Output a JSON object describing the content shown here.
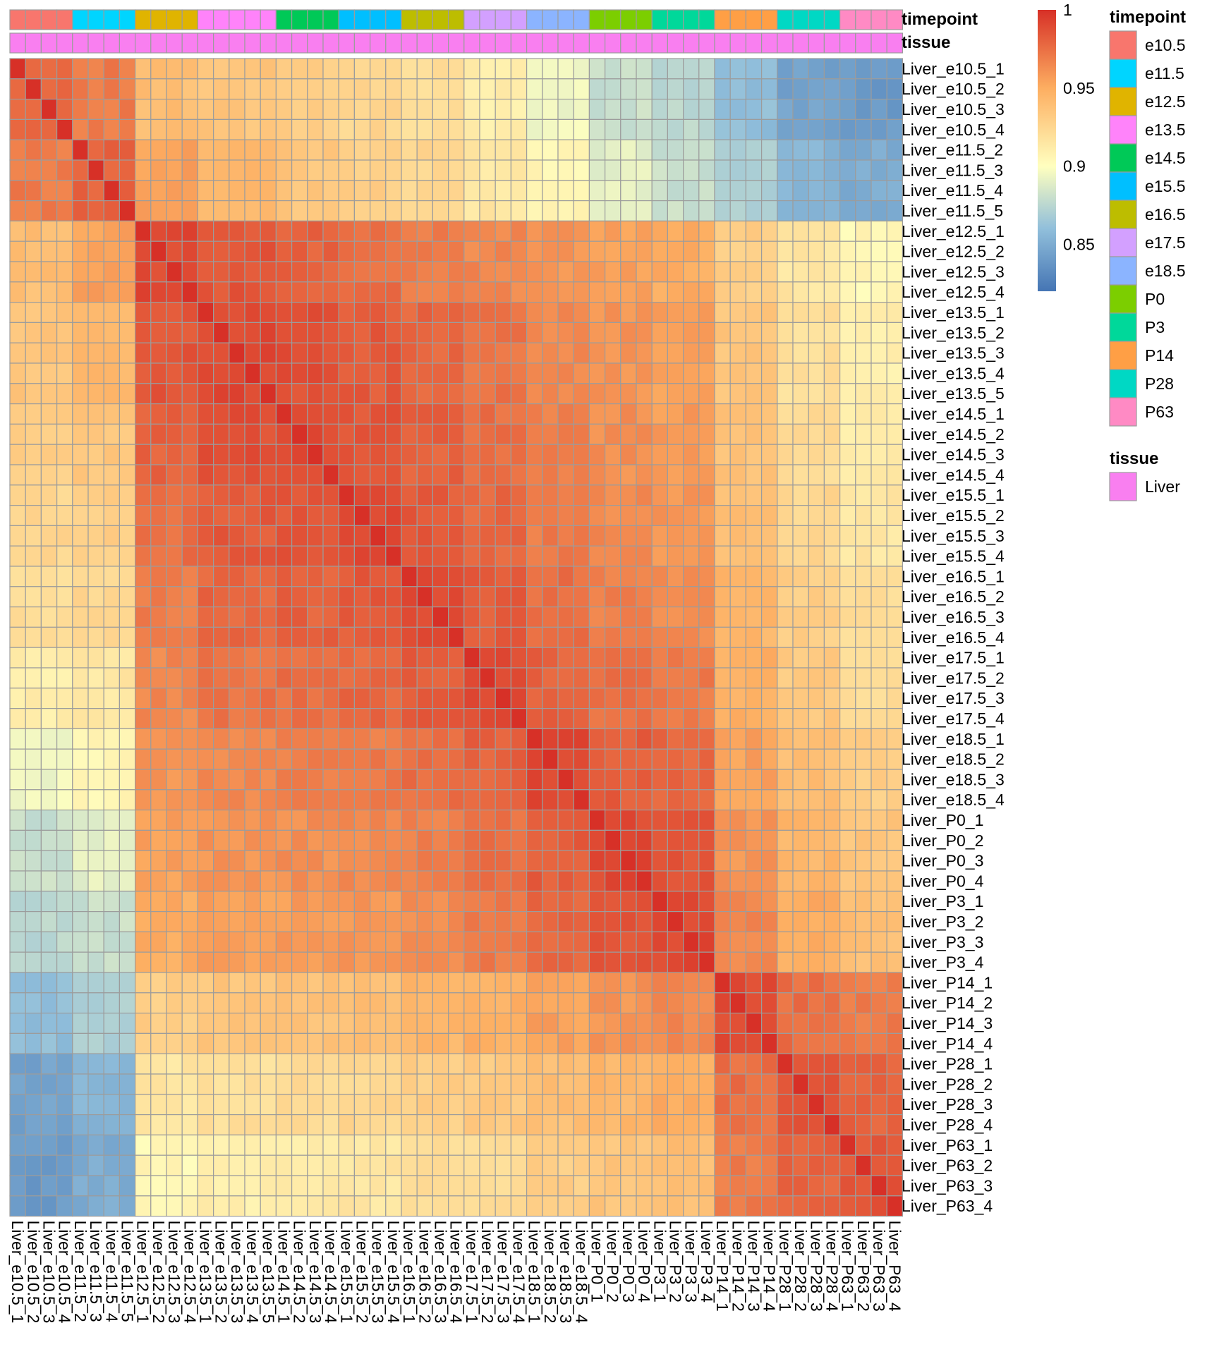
{
  "chart_data": {
    "type": "heatmap",
    "title": "",
    "samples": [
      "Liver_e10.5_1",
      "Liver_e10.5_2",
      "Liver_e10.5_3",
      "Liver_e10.5_4",
      "Liver_e11.5_2",
      "Liver_e11.5_3",
      "Liver_e11.5_4",
      "Liver_e11.5_5",
      "Liver_e12.5_1",
      "Liver_e12.5_2",
      "Liver_e12.5_3",
      "Liver_e12.5_4",
      "Liver_e13.5_1",
      "Liver_e13.5_2",
      "Liver_e13.5_3",
      "Liver_e13.5_4",
      "Liver_e13.5_5",
      "Liver_e14.5_1",
      "Liver_e14.5_2",
      "Liver_e14.5_3",
      "Liver_e14.5_4",
      "Liver_e15.5_1",
      "Liver_e15.5_2",
      "Liver_e15.5_3",
      "Liver_e15.5_4",
      "Liver_e16.5_1",
      "Liver_e16.5_2",
      "Liver_e16.5_3",
      "Liver_e16.5_4",
      "Liver_e17.5_1",
      "Liver_e17.5_2",
      "Liver_e17.5_3",
      "Liver_e17.5_4",
      "Liver_e18.5_1",
      "Liver_e18.5_2",
      "Liver_e18.5_3",
      "Liver_e18.5_4",
      "Liver_P0_1",
      "Liver_P0_2",
      "Liver_P0_3",
      "Liver_P0_4",
      "Liver_P3_1",
      "Liver_P3_2",
      "Liver_P3_3",
      "Liver_P3_4",
      "Liver_P14_1",
      "Liver_P14_2",
      "Liver_P14_3",
      "Liver_P14_4",
      "Liver_P28_1",
      "Liver_P28_2",
      "Liver_P28_3",
      "Liver_P28_4",
      "Liver_P63_1",
      "Liver_P63_2",
      "Liver_P63_3",
      "Liver_P63_4"
    ],
    "sample_timepoints": [
      "e10.5",
      "e10.5",
      "e10.5",
      "e10.5",
      "e11.5",
      "e11.5",
      "e11.5",
      "e11.5",
      "e12.5",
      "e12.5",
      "e12.5",
      "e12.5",
      "e13.5",
      "e13.5",
      "e13.5",
      "e13.5",
      "e13.5",
      "e14.5",
      "e14.5",
      "e14.5",
      "e14.5",
      "e15.5",
      "e15.5",
      "e15.5",
      "e15.5",
      "e16.5",
      "e16.5",
      "e16.5",
      "e16.5",
      "e17.5",
      "e17.5",
      "e17.5",
      "e17.5",
      "e18.5",
      "e18.5",
      "e18.5",
      "e18.5",
      "P0",
      "P0",
      "P0",
      "P0",
      "P3",
      "P3",
      "P3",
      "P3",
      "P14",
      "P14",
      "P14",
      "P14",
      "P28",
      "P28",
      "P28",
      "P28",
      "P63",
      "P63",
      "P63",
      "P63"
    ],
    "group_order": [
      "e10.5",
      "e11.5",
      "e12.5",
      "e13.5",
      "e14.5",
      "e15.5",
      "e16.5",
      "e17.5",
      "e18.5",
      "P0",
      "P3",
      "P14",
      "P28",
      "P63"
    ],
    "group_correlation_matrix": [
      [
        0.98,
        0.97,
        0.94,
        0.935,
        0.93,
        0.925,
        0.92,
        0.91,
        0.895,
        0.88,
        0.875,
        0.86,
        0.845,
        0.84
      ],
      [
        0.97,
        0.98,
        0.955,
        0.945,
        0.935,
        0.93,
        0.925,
        0.915,
        0.905,
        0.89,
        0.88,
        0.87,
        0.855,
        0.85
      ],
      [
        0.94,
        0.955,
        0.99,
        0.985,
        0.98,
        0.975,
        0.97,
        0.965,
        0.96,
        0.955,
        0.95,
        0.93,
        0.915,
        0.905
      ],
      [
        0.935,
        0.945,
        0.985,
        0.99,
        0.987,
        0.983,
        0.978,
        0.973,
        0.965,
        0.96,
        0.955,
        0.935,
        0.92,
        0.91
      ],
      [
        0.93,
        0.935,
        0.98,
        0.987,
        0.99,
        0.985,
        0.98,
        0.975,
        0.968,
        0.962,
        0.957,
        0.937,
        0.922,
        0.912
      ],
      [
        0.925,
        0.93,
        0.975,
        0.983,
        0.985,
        0.99,
        0.983,
        0.978,
        0.97,
        0.964,
        0.959,
        0.94,
        0.925,
        0.915
      ],
      [
        0.92,
        0.925,
        0.97,
        0.978,
        0.98,
        0.983,
        0.99,
        0.982,
        0.975,
        0.968,
        0.963,
        0.945,
        0.93,
        0.92
      ],
      [
        0.91,
        0.915,
        0.965,
        0.973,
        0.975,
        0.978,
        0.982,
        0.99,
        0.98,
        0.975,
        0.97,
        0.948,
        0.933,
        0.923
      ],
      [
        0.895,
        0.905,
        0.96,
        0.965,
        0.968,
        0.97,
        0.975,
        0.98,
        0.99,
        0.982,
        0.978,
        0.955,
        0.94,
        0.93
      ],
      [
        0.88,
        0.89,
        0.955,
        0.96,
        0.962,
        0.964,
        0.968,
        0.975,
        0.982,
        0.99,
        0.985,
        0.96,
        0.945,
        0.935
      ],
      [
        0.875,
        0.88,
        0.95,
        0.955,
        0.957,
        0.959,
        0.963,
        0.97,
        0.978,
        0.985,
        0.99,
        0.965,
        0.95,
        0.94
      ],
      [
        0.86,
        0.87,
        0.93,
        0.935,
        0.937,
        0.94,
        0.945,
        0.948,
        0.955,
        0.96,
        0.965,
        0.99,
        0.975,
        0.97
      ],
      [
        0.845,
        0.855,
        0.915,
        0.92,
        0.922,
        0.925,
        0.93,
        0.933,
        0.94,
        0.945,
        0.95,
        0.975,
        0.985,
        0.98
      ],
      [
        0.84,
        0.85,
        0.905,
        0.91,
        0.912,
        0.915,
        0.92,
        0.923,
        0.93,
        0.935,
        0.94,
        0.97,
        0.98,
        0.985
      ]
    ],
    "diagonal_value": 1.0,
    "color_scale": {
      "min": 0.82,
      "max": 1.0,
      "ticks": [
        1,
        0.95,
        0.9,
        0.85
      ],
      "tick_labels": [
        "1",
        "0.95",
        "0.9",
        "0.85"
      ],
      "stops": [
        {
          "v": 0.82,
          "color": "#4575b4"
        },
        {
          "v": 0.86,
          "color": "#91bfdb"
        },
        {
          "v": 0.9,
          "color": "#ffffbf"
        },
        {
          "v": 0.95,
          "color": "#fdae61"
        },
        {
          "v": 1.0,
          "color": "#d73027"
        }
      ]
    },
    "annotations": {
      "timepoint": {
        "label": "timepoint",
        "levels": [
          "e10.5",
          "e11.5",
          "e12.5",
          "e13.5",
          "e14.5",
          "e15.5",
          "e16.5",
          "e17.5",
          "e18.5",
          "P0",
          "P3",
          "P14",
          "P28",
          "P63"
        ],
        "colors": [
          "#f8766d",
          "#00d5ff",
          "#e0b400",
          "#ff83fa",
          "#00c957",
          "#00bfff",
          "#bdbd00",
          "#d3a0ff",
          "#8bb4ff",
          "#7cce00",
          "#00d89a",
          "#ff9f45",
          "#00d8c4",
          "#ff8ac4"
        ]
      },
      "tissue": {
        "label": "tissue",
        "levels": [
          "Liver"
        ],
        "colors": [
          "#f97ff0"
        ]
      }
    },
    "legend_position": "right",
    "grid": true
  }
}
